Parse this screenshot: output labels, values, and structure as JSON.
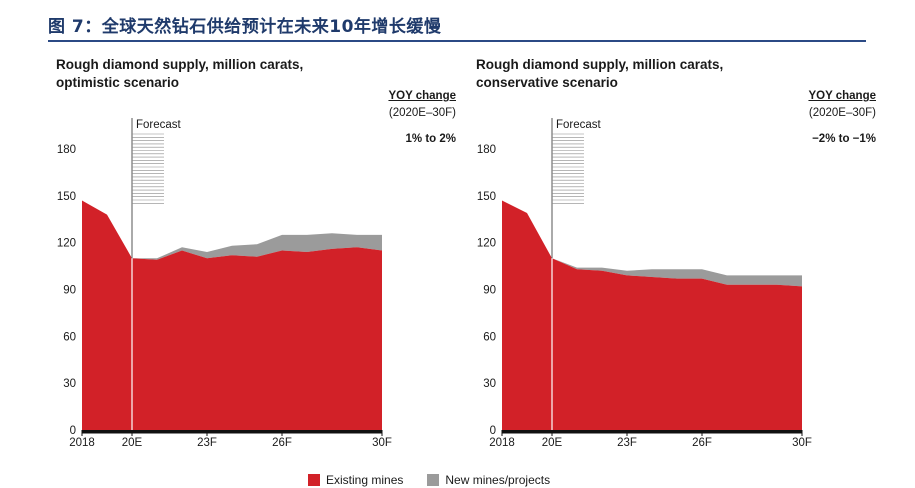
{
  "figure": {
    "title": "图 7：全球天然钻石供给预计在未来10年增长缓慢"
  },
  "colors": {
    "existing": "#d22128",
    "new": "#9b9b9b",
    "title_blue": "#1f3a6b"
  },
  "panels": [
    {
      "title_line1": "Rough diamond supply, million carats,",
      "title_line2": "optimistic scenario",
      "yoy_title": "YOY change",
      "yoy_period": "(2020E–30F)",
      "yoy_value": "1% to 2%"
    },
    {
      "title_line1": "Rough diamond supply, million carats,",
      "title_line2": "conservative scenario",
      "yoy_title": "YOY change",
      "yoy_period": "(2020E–30F)",
      "yoy_value": "−2% to −1%"
    }
  ],
  "legend": {
    "existing": "Existing mines",
    "new": "New mines/projects"
  },
  "chart_data": [
    {
      "type": "area",
      "title": "Rough diamond supply, million carats, optimistic scenario",
      "x": [
        2018,
        2019,
        2020,
        2021,
        2022,
        2023,
        2024,
        2025,
        2026,
        2027,
        2028,
        2029,
        2030
      ],
      "xticks": [
        {
          "value": 2018,
          "label": "2018"
        },
        {
          "value": 2020,
          "label": "20E"
        },
        {
          "value": 2023,
          "label": "23F"
        },
        {
          "value": 2026,
          "label": "26F"
        },
        {
          "value": 2030,
          "label": "30F"
        }
      ],
      "forecast_marker": {
        "x": 2020,
        "label": "Forecast"
      },
      "ylim": [
        0,
        180
      ],
      "yticks": [
        0,
        30,
        60,
        90,
        120,
        150,
        180
      ],
      "stacked": true,
      "series": [
        {
          "name": "Existing mines",
          "values": [
            147,
            138,
            110,
            109,
            115,
            110,
            112,
            111,
            115,
            114,
            116,
            117,
            115
          ]
        },
        {
          "name": "New mines/projects",
          "values": [
            0,
            0,
            0,
            1,
            2,
            4,
            6,
            8,
            10,
            11,
            10,
            8,
            10
          ]
        }
      ]
    },
    {
      "type": "area",
      "title": "Rough diamond supply, million carats, conservative scenario",
      "x": [
        2018,
        2019,
        2020,
        2021,
        2022,
        2023,
        2024,
        2025,
        2026,
        2027,
        2028,
        2029,
        2030
      ],
      "xticks": [
        {
          "value": 2018,
          "label": "2018"
        },
        {
          "value": 2020,
          "label": "20E"
        },
        {
          "value": 2023,
          "label": "23F"
        },
        {
          "value": 2026,
          "label": "26F"
        },
        {
          "value": 2030,
          "label": "30F"
        }
      ],
      "forecast_marker": {
        "x": 2020,
        "label": "Forecast"
      },
      "ylim": [
        0,
        180
      ],
      "yticks": [
        0,
        30,
        60,
        90,
        120,
        150,
        180
      ],
      "stacked": true,
      "series": [
        {
          "name": "Existing mines",
          "values": [
            147,
            139,
            110,
            103,
            102,
            99,
            98,
            97,
            97,
            93,
            93,
            93,
            92
          ]
        },
        {
          "name": "New mines/projects",
          "values": [
            0,
            0,
            0,
            1,
            2,
            3,
            5,
            6,
            6,
            6,
            6,
            6,
            7
          ]
        }
      ]
    }
  ]
}
